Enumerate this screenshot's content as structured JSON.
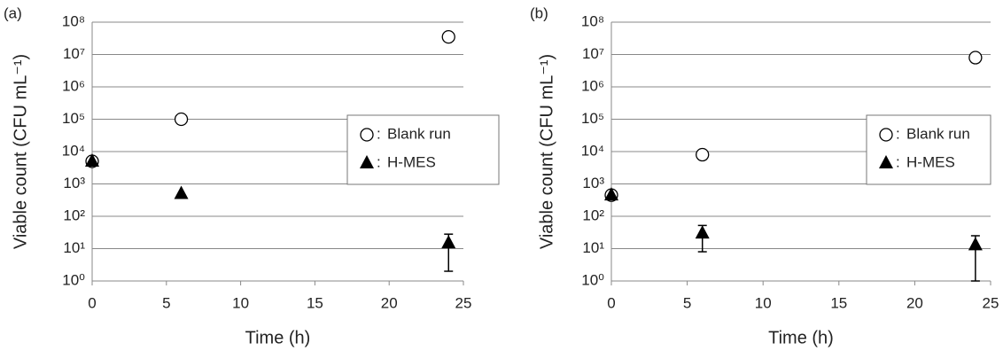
{
  "chart_data": [
    {
      "type": "scatter",
      "panel_label": "(a)",
      "x_label": "Time (h)",
      "y_label": "Viable count (CFU mL⁻¹)",
      "log_y": true,
      "grid": true,
      "legend_position": "center right",
      "legend_separator": ":",
      "xlim": [
        0,
        25
      ],
      "xticks": [
        0,
        5,
        10,
        15,
        20,
        25
      ],
      "ylim": [
        1,
        100000000
      ],
      "yticks": [
        {
          "value": 1,
          "label": "10⁰"
        },
        {
          "value": 10,
          "label": "10¹"
        },
        {
          "value": 100,
          "label": "10²"
        },
        {
          "value": 1000,
          "label": "10³"
        },
        {
          "value": 10000,
          "label": "10⁴"
        },
        {
          "value": 100000,
          "label": "10⁵"
        },
        {
          "value": 1000000,
          "label": "10⁶"
        },
        {
          "value": 10000000,
          "label": "10⁷"
        },
        {
          "value": 100000000,
          "label": "10⁸"
        }
      ],
      "series": [
        {
          "name": "Blank run",
          "color": "#000000",
          "marker": "circle",
          "x": [
            0,
            6,
            24
          ],
          "values": [
            5000,
            100000,
            35000000
          ]
        },
        {
          "name": "H-MES",
          "color": "#000000",
          "marker": "triangle",
          "x": [
            0,
            6,
            24
          ],
          "values": [
            5000,
            500,
            15
          ],
          "errors": [
            null,
            null,
            13
          ]
        }
      ]
    },
    {
      "type": "scatter",
      "panel_label": "(b)",
      "x_label": "Time (h)",
      "y_label": "Viable count (CFU mL⁻¹)",
      "log_y": true,
      "grid": true,
      "legend_position": "center right",
      "legend_separator": ":",
      "xlim": [
        0,
        25
      ],
      "xticks": [
        0,
        5,
        10,
        15,
        20,
        25
      ],
      "ylim": [
        1,
        100000000
      ],
      "yticks": [
        {
          "value": 1,
          "label": "10⁰"
        },
        {
          "value": 10,
          "label": "10¹"
        },
        {
          "value": 100,
          "label": "10²"
        },
        {
          "value": 1000,
          "label": "10³"
        },
        {
          "value": 10000,
          "label": "10⁴"
        },
        {
          "value": 100000,
          "label": "10⁵"
        },
        {
          "value": 1000000,
          "label": "10⁶"
        },
        {
          "value": 10000000,
          "label": "10⁷"
        },
        {
          "value": 100000000,
          "label": "10⁸"
        }
      ],
      "series": [
        {
          "name": "Blank run",
          "color": "#000000",
          "marker": "circle",
          "x": [
            0,
            6,
            24
          ],
          "values": [
            450,
            8000,
            8000000
          ]
        },
        {
          "name": "H-MES",
          "color": "#000000",
          "marker": "triangle",
          "x": [
            0,
            6,
            24
          ],
          "values": [
            450,
            30,
            13
          ],
          "errors": [
            null,
            22,
            12
          ]
        }
      ]
    }
  ]
}
